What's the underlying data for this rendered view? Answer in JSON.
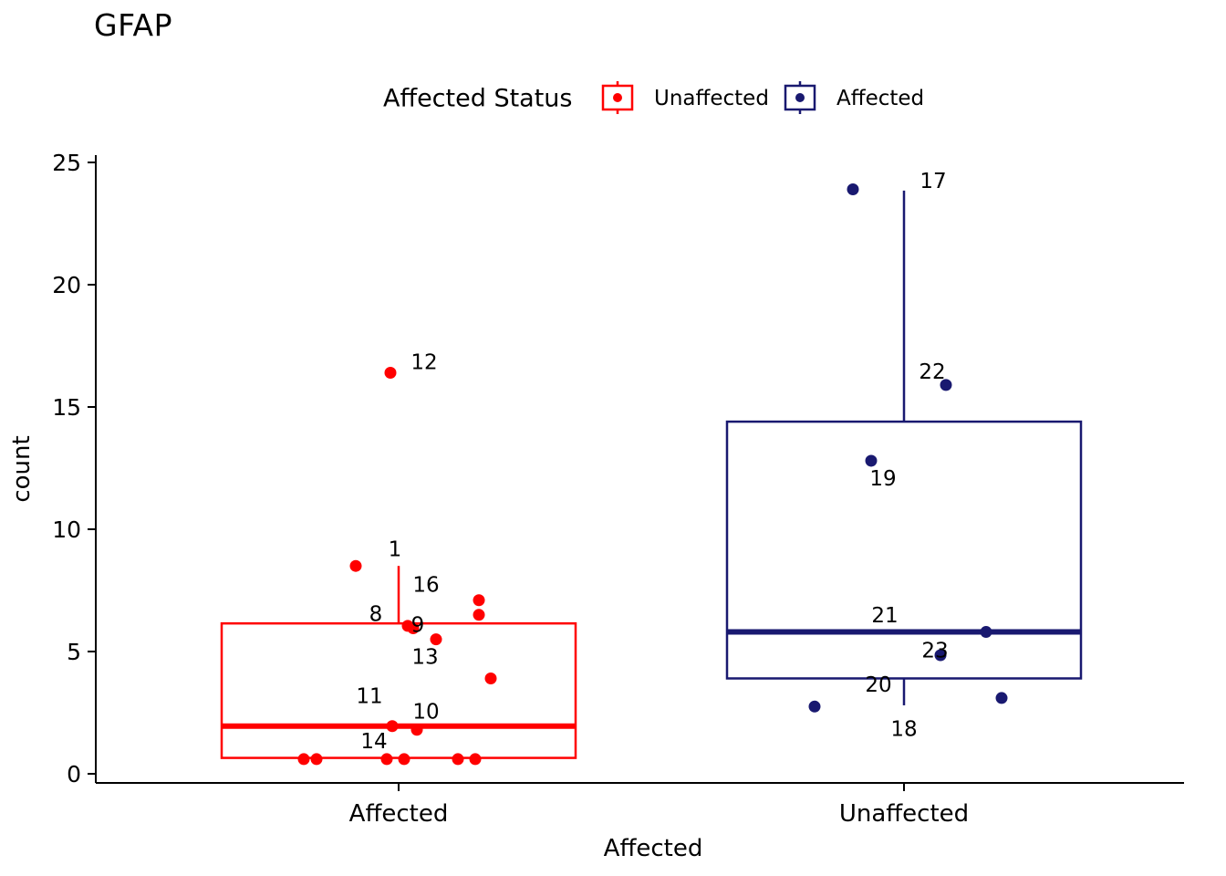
{
  "title": "GFAP",
  "legend": {
    "title": "Affected Status",
    "entries": [
      {
        "label": "Unaffected",
        "color": "#FF0000"
      },
      {
        "label": "Affected",
        "color": "#191970"
      }
    ]
  },
  "chart_data": {
    "type": "boxplot",
    "title": "GFAP",
    "xlabel": "Affected",
    "ylabel": "count",
    "ylim": [
      0,
      25
    ],
    "yticks": [
      0,
      5,
      10,
      15,
      20,
      25
    ],
    "categories": [
      "Affected",
      "Unaffected"
    ],
    "legend": {
      "title": "Affected Status",
      "entries": [
        {
          "label": "Unaffected",
          "color": "#FF0000"
        },
        {
          "label": "Affected",
          "color": "#191970"
        }
      ]
    },
    "groups": [
      {
        "category": "Affected",
        "color": "#FF0000",
        "box": {
          "q1": 0.65,
          "median": 1.95,
          "q3": 6.15,
          "whisker_high": 8.5,
          "whisker_low": null
        },
        "points": [
          {
            "dx": -104,
            "v": 0.6
          },
          {
            "dx": -90,
            "v": 0.6
          },
          {
            "dx": -47,
            "v": 8.5
          },
          {
            "dx": -9,
            "v": 16.4
          },
          {
            "dx": 10,
            "v": 6.05
          },
          {
            "dx": 16,
            "v": 5.95
          },
          {
            "dx": 41,
            "v": 5.5
          },
          {
            "dx": 88,
            "v": 7.1
          },
          {
            "dx": 88,
            "v": 6.5
          },
          {
            "dx": 101,
            "v": 3.9
          },
          {
            "dx": -7,
            "v": 1.95
          },
          {
            "dx": 20,
            "v": 1.8
          },
          {
            "dx": -13,
            "v": 0.6
          },
          {
            "dx": 6,
            "v": 0.6
          },
          {
            "dx": 65,
            "v": 0.6
          },
          {
            "dx": 84,
            "v": 0.6
          }
        ],
        "labels": [
          {
            "text": "1",
            "dx": -4,
            "v": 9.2
          },
          {
            "text": "12",
            "dx": 28,
            "v": 16.85
          },
          {
            "text": "16",
            "dx": 30,
            "v": 7.75
          },
          {
            "text": "8",
            "dx": -25,
            "v": 6.55
          },
          {
            "text": "9",
            "dx": 21,
            "v": 6.1
          },
          {
            "text": "13",
            "dx": 29,
            "v": 4.8
          },
          {
            "text": "11",
            "dx": -32,
            "v": 3.2
          },
          {
            "text": "10",
            "dx": 30,
            "v": 2.55
          },
          {
            "text": "14",
            "dx": -27,
            "v": 1.35
          }
        ]
      },
      {
        "category": "Unaffected",
        "color": "#191970",
        "box": {
          "q1": 3.9,
          "median": 5.8,
          "q3": 14.4,
          "whisker_high": 23.85,
          "whisker_low": 2.8
        },
        "points": [
          {
            "dx": -56,
            "v": 23.9
          },
          {
            "dx": 46,
            "v": 15.9
          },
          {
            "dx": -36,
            "v": 12.8
          },
          {
            "dx": 90,
            "v": 5.8
          },
          {
            "dx": 40,
            "v": 4.85
          },
          {
            "dx": -98,
            "v": 2.75
          },
          {
            "dx": 107,
            "v": 3.1
          }
        ],
        "labels": [
          {
            "text": "17",
            "dx": 32,
            "v": 24.25
          },
          {
            "text": "22",
            "dx": 31,
            "v": 16.45
          },
          {
            "text": "19",
            "dx": -23,
            "v": 12.1
          },
          {
            "text": "21",
            "dx": -21,
            "v": 6.5
          },
          {
            "text": "23",
            "dx": 34,
            "v": 5.05
          },
          {
            "text": "20",
            "dx": -28,
            "v": 3.65
          },
          {
            "text": "18",
            "dx": 0,
            "v": 1.85
          }
        ]
      }
    ]
  }
}
